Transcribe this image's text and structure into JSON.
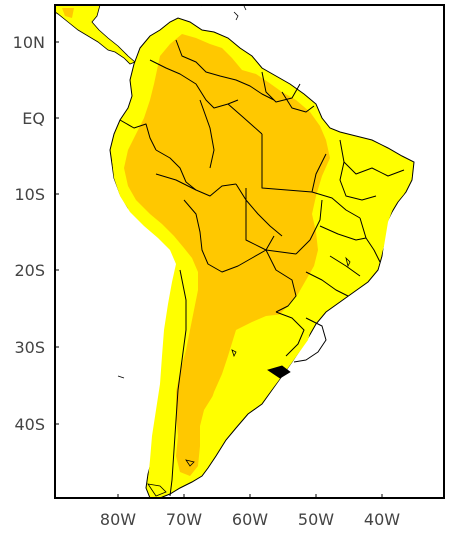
{
  "map": {
    "lat_labels": [
      "10N",
      "EQ",
      "10S",
      "20S",
      "30S",
      "40S"
    ],
    "lon_labels": [
      "80W",
      "70W",
      "60W",
      "50W",
      "40W"
    ],
    "colors": {
      "ocean": "#ffffff",
      "land_low": "#ffff00",
      "land_high": "#ffc800",
      "borders": "#000000",
      "frame": "#000000",
      "label_text": "#444444"
    }
  }
}
